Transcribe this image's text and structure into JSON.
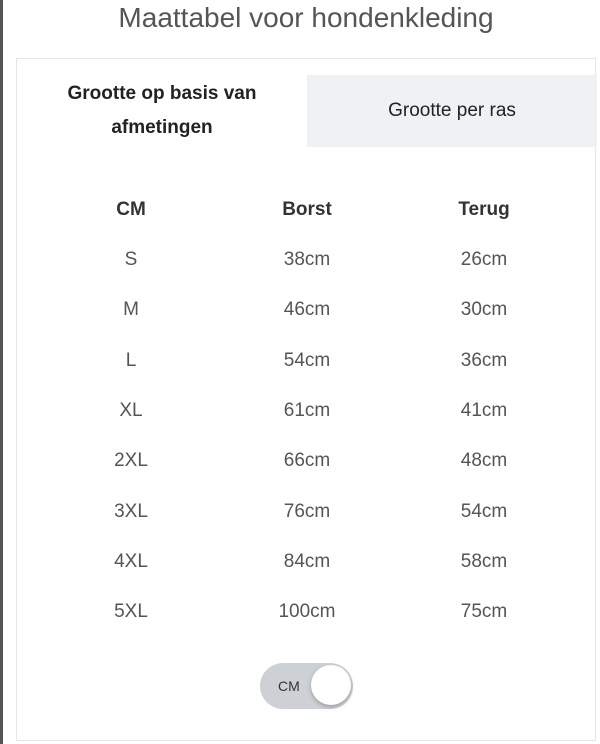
{
  "title": "Maattabel voor hondenkleding",
  "tabs": [
    {
      "label": "Grootte op basis van afmetingen",
      "active": true
    },
    {
      "label": "Grootte per ras",
      "active": false
    }
  ],
  "table": {
    "headers": [
      "CM",
      "Borst",
      "Terug"
    ],
    "rows": [
      [
        "S",
        "38cm",
        "26cm"
      ],
      [
        "M",
        "46cm",
        "30cm"
      ],
      [
        "L",
        "54cm",
        "36cm"
      ],
      [
        "XL",
        "61cm",
        "41cm"
      ],
      [
        "2XL",
        "66cm",
        "48cm"
      ],
      [
        "3XL",
        "76cm",
        "54cm"
      ],
      [
        "4XL",
        "84cm",
        "58cm"
      ],
      [
        "5XL",
        "100cm",
        "75cm"
      ]
    ]
  },
  "unit_toggle": {
    "label": "CM"
  }
}
